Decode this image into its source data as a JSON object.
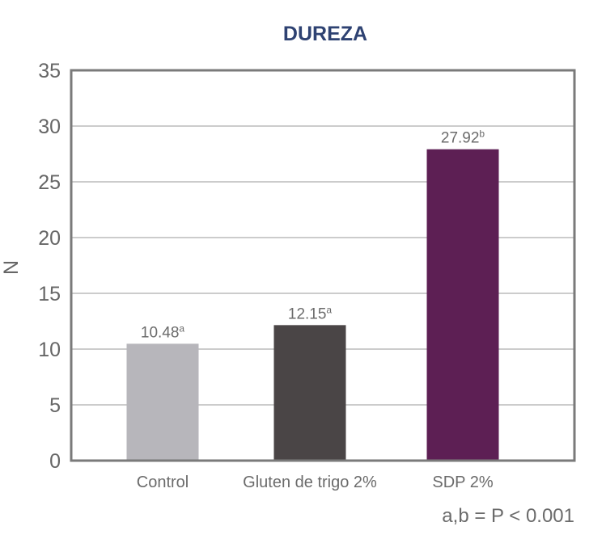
{
  "chart_data": {
    "type": "bar",
    "title": "DUREZA",
    "ylabel": "N",
    "xlabel": "",
    "ylim": [
      0,
      35
    ],
    "yticks": [
      0,
      5,
      10,
      15,
      20,
      25,
      30,
      35
    ],
    "grid": true,
    "categories": [
      "Control",
      "Gluten de trigo 2%",
      "SDP 2%"
    ],
    "values": [
      10.48,
      12.15,
      27.92
    ],
    "value_labels": [
      "10.48",
      "12.15",
      "27.92"
    ],
    "superscripts": [
      "a",
      "a",
      "b"
    ],
    "colors": [
      "#b7b6bb",
      "#4a4546",
      "#5d1f54"
    ],
    "annotation": "a,b = P < 0.001"
  }
}
